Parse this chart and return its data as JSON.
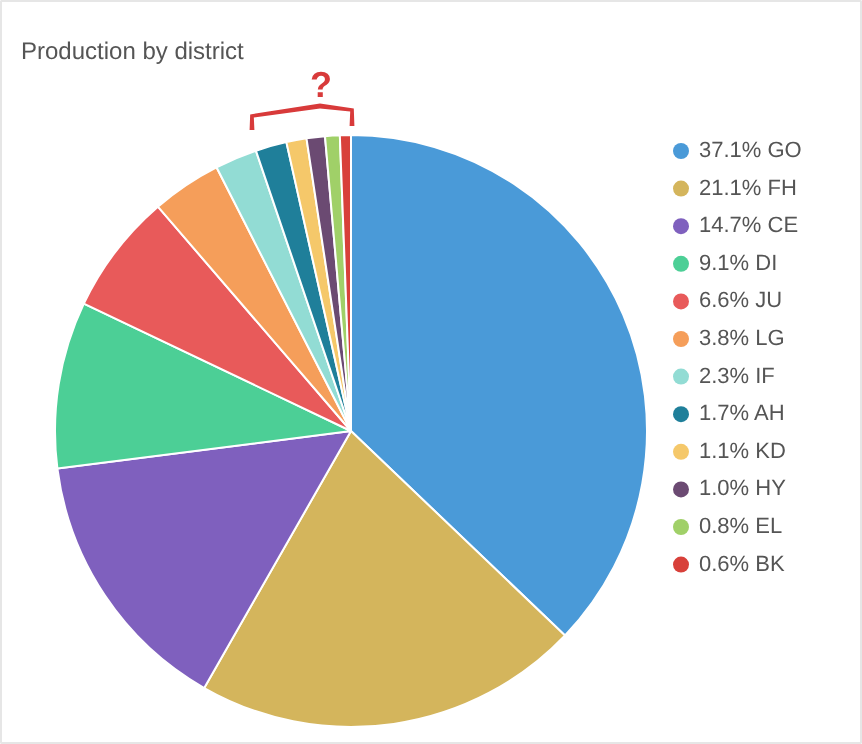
{
  "chart_data": {
    "type": "pie",
    "title": "Production by district",
    "categories": [
      "GO",
      "FH",
      "CE",
      "DI",
      "JU",
      "LG",
      "IF",
      "AH",
      "KD",
      "HY",
      "EL",
      "BK"
    ],
    "values": [
      37.1,
      21.1,
      14.7,
      9.1,
      6.6,
      3.8,
      2.3,
      1.7,
      1.1,
      1.0,
      0.8,
      0.6
    ],
    "value_labels": [
      "37.1%",
      "21.1%",
      "14.7%",
      "9.1%",
      "6.6%",
      "3.8%",
      "2.3%",
      "1.7%",
      "1.1%",
      "1.0%",
      "0.8%",
      "0.6%"
    ],
    "colors": [
      "#4a9ad8",
      "#d4b55c",
      "#7f60be",
      "#4ccf96",
      "#e85a5a",
      "#f59e5a",
      "#92dcd4",
      "#1f7f9a",
      "#f5c86a",
      "#6b4a72",
      "#a0d068",
      "#d8403a"
    ],
    "annotations": [
      "?"
    ],
    "legend": "right"
  }
}
